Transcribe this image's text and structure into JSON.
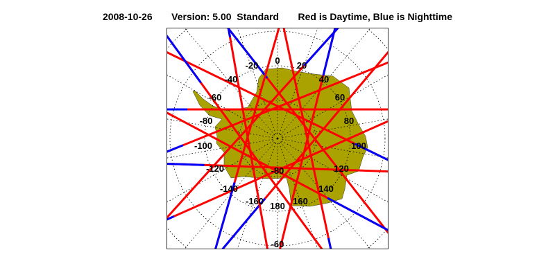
{
  "header": {
    "date": "2008-10-26",
    "version": "Version: 5.00  Standard",
    "legend": "Red is Daytime, Blue is Nighttime"
  },
  "map": {
    "projection": "south polar stereographic",
    "region": "Antarctica",
    "colors": {
      "land": "#aaa200",
      "day": "#ff0000",
      "night": "#0000ff",
      "grid": "#000000"
    },
    "longitude_labels": [
      "0",
      "20",
      "40",
      "60",
      "80",
      "100",
      "120",
      "140",
      "160",
      "180",
      "-160",
      "-140",
      "-120",
      "-100",
      "-80",
      "-60",
      "-40",
      "-20"
    ],
    "latitude_labels": [
      "-80",
      "-60"
    ]
  }
}
